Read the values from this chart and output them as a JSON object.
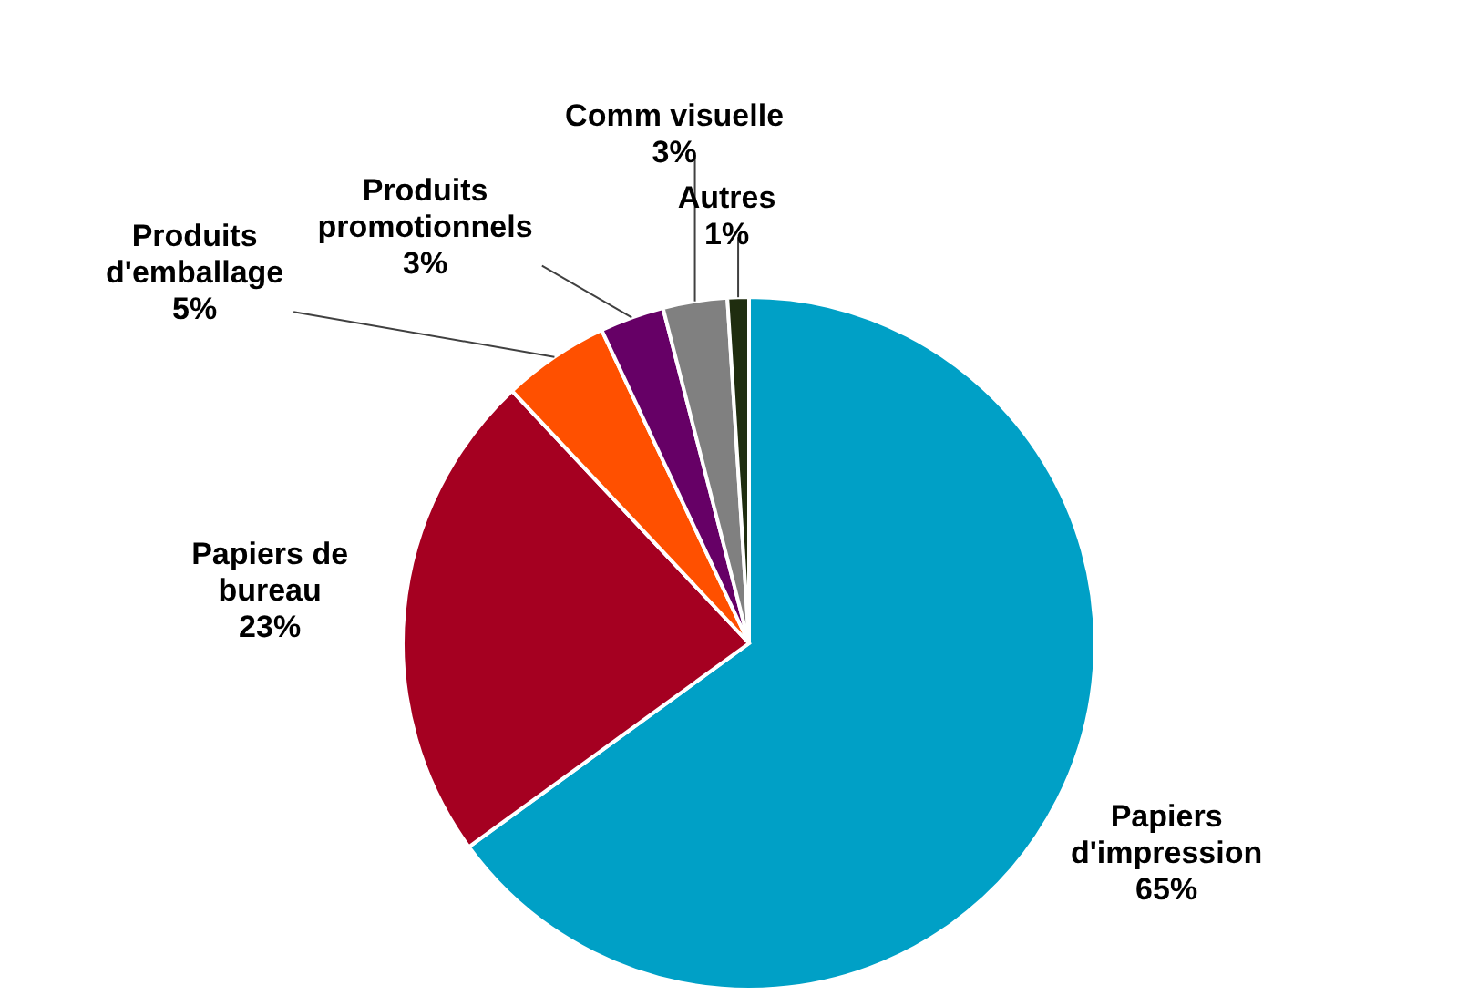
{
  "chart_data": {
    "type": "pie",
    "categories": [
      "Papiers d'impression",
      "Papiers de bureau",
      "Produits d'emballage",
      "Produits promotionnels",
      "Comm visuelle",
      "Autres"
    ],
    "values": [
      65,
      23,
      5,
      3,
      3,
      1
    ],
    "colors": [
      "#00a0c6",
      "#a50021",
      "#ff5000",
      "#660066",
      "#808080",
      "#1f2d0f"
    ],
    "value_labels": [
      "65%",
      "23%",
      "5%",
      "3%",
      "3%",
      "1%"
    ]
  }
}
